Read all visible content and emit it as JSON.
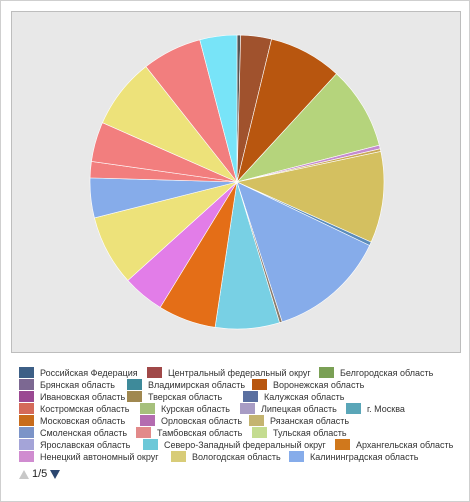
{
  "chart_data": {
    "type": "pie",
    "legend_position": "bottom",
    "slices": [
      {
        "value": 0.4,
        "color": "#555555"
      },
      {
        "value": 3.4,
        "color": "#a0522d"
      },
      {
        "value": 8.1,
        "color": "#b8560f"
      },
      {
        "value": 9.2,
        "color": "#b5d47c"
      },
      {
        "value": 0.4,
        "color": "#c48bd0"
      },
      {
        "value": 0.3,
        "color": "#c9a955"
      },
      {
        "value": 10.1,
        "color": "#d4c060"
      },
      {
        "value": 0.4,
        "color": "#5b8cba"
      },
      {
        "value": 13.0,
        "color": "#86acea"
      },
      {
        "value": 0.3,
        "color": "#8a7a6a"
      },
      {
        "value": 7.1,
        "color": "#78d0e4"
      },
      {
        "value": 6.4,
        "color": "#e46e17"
      },
      {
        "value": 4.6,
        "color": "#e27de8"
      },
      {
        "value": 7.8,
        "color": "#ede27a"
      },
      {
        "value": 4.4,
        "color": "#86acea"
      },
      {
        "value": 1.8,
        "color": "#f27e7e"
      },
      {
        "value": 4.4,
        "color": "#f27e7e"
      },
      {
        "value": 7.8,
        "color": "#ede27a"
      },
      {
        "value": 6.6,
        "color": "#f27e7e"
      },
      {
        "value": 4.1,
        "color": "#78e4f8"
      }
    ],
    "legend": [
      {
        "label": "Российская Федерация",
        "color": "#3d5f86"
      },
      {
        "label": "Центральный федеральный округ",
        "color": "#a04848"
      },
      {
        "label": "Белгородская область",
        "color": "#7aa055"
      },
      {
        "label": "Брянская область",
        "color": "#7c6892"
      },
      {
        "label": "Владимирская область",
        "color": "#3e8a9a"
      },
      {
        "label": "Воронежская область",
        "color": "#b8560f"
      },
      {
        "label": "Ивановская область",
        "color": "#9a4892"
      },
      {
        "label": "Тверская область",
        "color": "#a08850"
      },
      {
        "label": "Калужская область",
        "color": "#5a6fa0"
      },
      {
        "label": "Костромская область",
        "color": "#d46a5a"
      },
      {
        "label": "Курская область",
        "color": "#a6c07c"
      },
      {
        "label": "Липецкая область",
        "color": "#a89cc4"
      },
      {
        "label": "г. Москва",
        "color": "#5aa6b8"
      },
      {
        "label": "Московская область",
        "color": "#c86c1c"
      },
      {
        "label": "Орловская область",
        "color": "#b46cb0"
      },
      {
        "label": "Рязанская область",
        "color": "#c4b470"
      },
      {
        "label": "Смоленская область",
        "color": "#7c94c8"
      },
      {
        "label": "Тамбовская область",
        "color": "#e28a8a"
      },
      {
        "label": "Тульская область",
        "color": "#c4dc90"
      },
      {
        "label": "Ярославская область",
        "color": "#a4a4d8"
      },
      {
        "label": "Северо-Западный федеральный округ",
        "color": "#6cc8d8"
      },
      {
        "label": "Архангельская область",
        "color": "#d0781c"
      },
      {
        "label": "Ненецкий автономный округ",
        "color": "#d08cd0"
      },
      {
        "label": "Вологодская область",
        "color": "#d8cc78"
      },
      {
        "label": "Калининградская область",
        "color": "#86acea"
      }
    ]
  },
  "pager": {
    "text": "1/5"
  }
}
